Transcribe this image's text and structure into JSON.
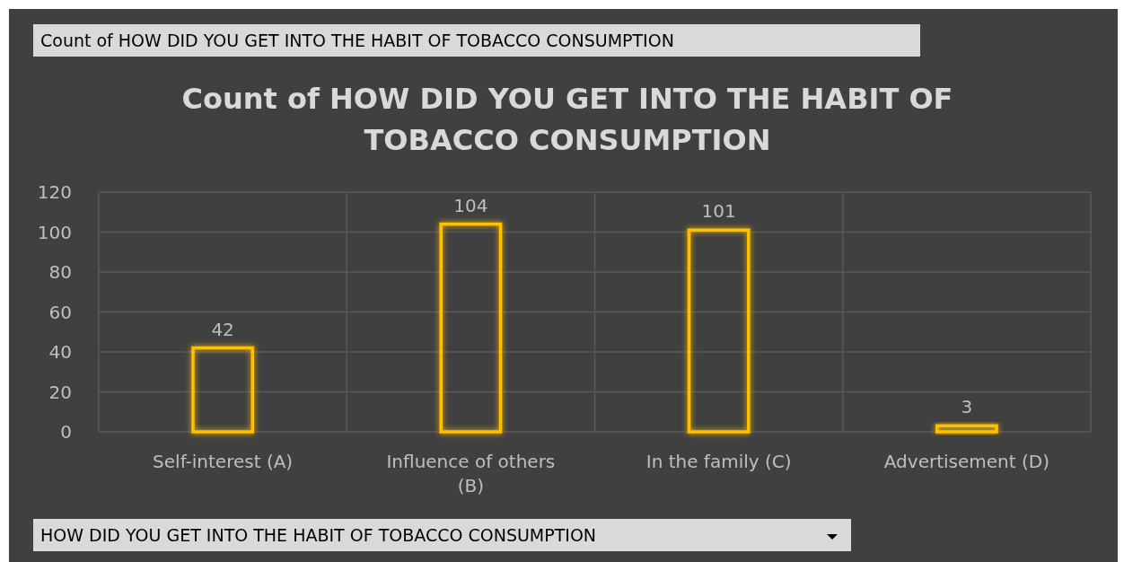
{
  "chart_data": {
    "type": "bar",
    "title": "Count of HOW DID YOU GET INTO THE HABIT OF TOBACCO CONSUMPTION",
    "categories": [
      "Self-interest (A)",
      "Influence of others (B)",
      "In the family (C)",
      "Advertisement (D)"
    ],
    "values": [
      42,
      104,
      101,
      3
    ],
    "color": "#ffc000",
    "ylim": [
      0,
      120
    ],
    "yticks": [
      0,
      20,
      40,
      60,
      80,
      100,
      120
    ],
    "grid": true,
    "data_labels": true,
    "annotations": [
      "Count of HOW DID YOU GET INTO THE HABIT OF TOBACCO CONSUMPTION",
      "HOW DID YOU GET INTO THE HABIT OF TOBACCO CONSUMPTION"
    ]
  }
}
